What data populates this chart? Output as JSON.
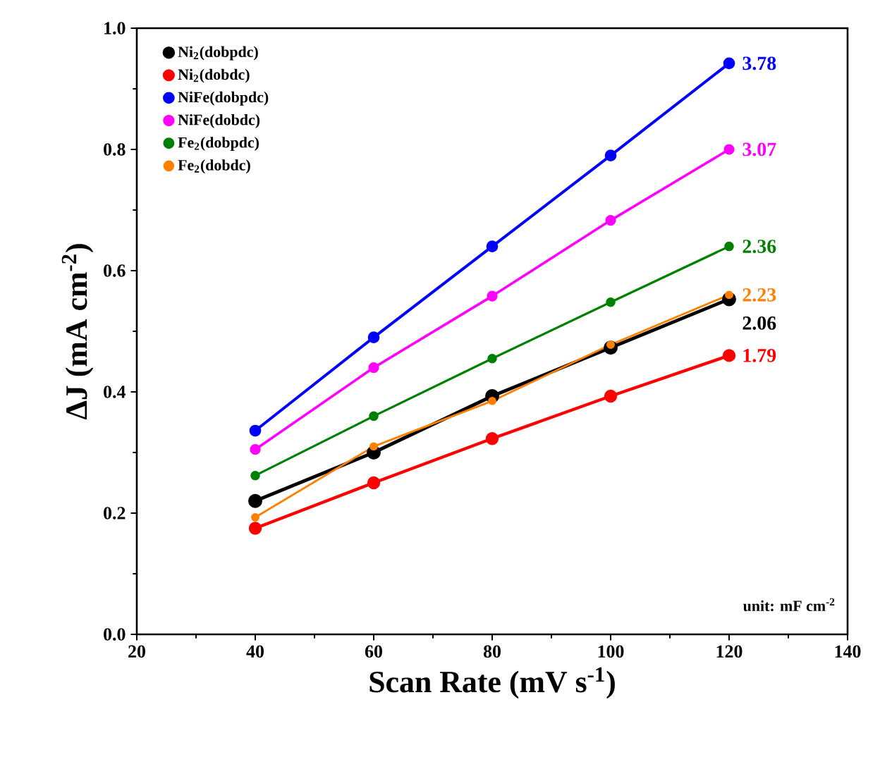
{
  "chart_data": {
    "type": "line",
    "xlabel": "Scan Rate (mV s$^{-1}$)",
    "ylabel": "ΔJ (mA cm$^{-2}$)",
    "x": [
      40,
      60,
      80,
      100,
      120
    ],
    "series": [
      {
        "name": "Ni$_{2}$(dobpdc)",
        "color": "#000000",
        "values": [
          0.22,
          0.3,
          0.393,
          0.473,
          0.553
        ]
      },
      {
        "name": "Ni$_{2}$(dobdc)",
        "color": "#ff0000",
        "values": [
          0.175,
          0.25,
          0.323,
          0.393,
          0.46
        ]
      },
      {
        "name": "NiFe(dobpdc)",
        "color": "#0000ff",
        "values": [
          0.336,
          0.49,
          0.64,
          0.79,
          0.942
        ]
      },
      {
        "name": "NiFe(dobdc)",
        "color": "#ff00ff",
        "values": [
          0.305,
          0.44,
          0.558,
          0.683,
          0.8
        ]
      },
      {
        "name": "Fe$_{2}$(dobpdc)",
        "color": "#008000",
        "values": [
          0.262,
          0.36,
          0.455,
          0.548,
          0.64
        ]
      },
      {
        "name": "Fe$_{2}$(dobdc)",
        "color": "#ff8000",
        "values": [
          0.193,
          0.31,
          0.385,
          0.478,
          0.56
        ]
      }
    ],
    "annotations": [
      "2.06",
      "1.79",
      "3.78",
      "3.07",
      "2.36",
      "2.23",
      "unit: mF cm$^{-2}$"
    ],
    "xlim": [
      20,
      140
    ],
    "ylim": [
      0,
      1
    ],
    "xticks": [
      20,
      40,
      60,
      80,
      100,
      120,
      140
    ],
    "yticks": [
      {
        "value": 0,
        "label": "0.0"
      },
      {
        "value": 0.2,
        "label": "0.2"
      },
      {
        "value": 0.4,
        "label": "0.4"
      },
      {
        "value": 0.6,
        "label": "0.6"
      },
      {
        "value": 0.8,
        "label": "0.8"
      },
      {
        "value": 1,
        "label": "1.0"
      }
    ],
    "legend": "top left",
    "marker": "circle",
    "line_style": "solid",
    "grid": false
  }
}
